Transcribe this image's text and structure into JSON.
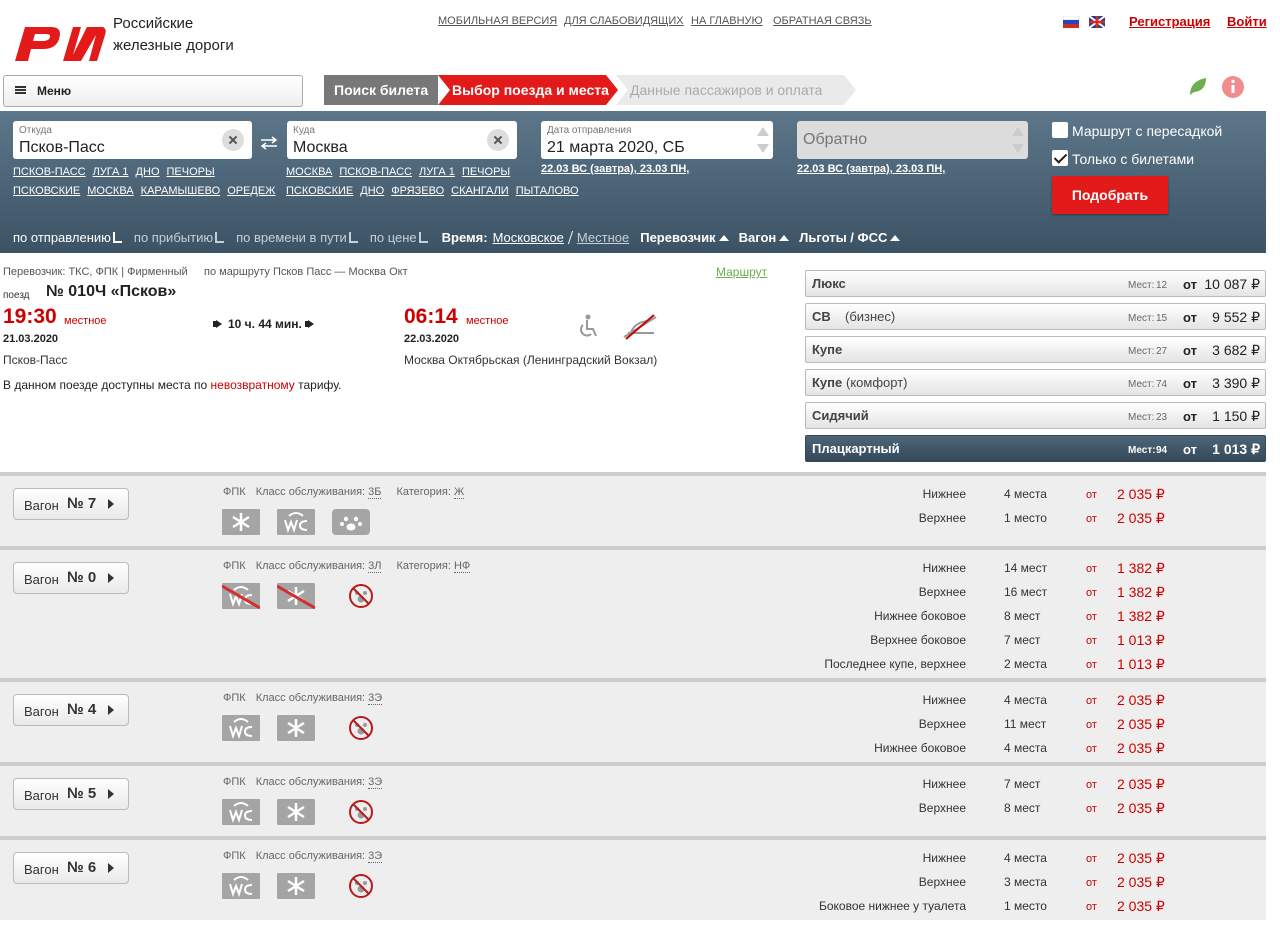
{
  "header": {
    "logo_line1": "Российские",
    "logo_line2": "железные дороги",
    "links": [
      "МОБИЛЬНАЯ ВЕРСИЯ",
      "ДЛЯ СЛАБОВИДЯЩИХ",
      "НА ГЛАВНУЮ",
      "ОБРАТНАЯ СВЯЗЬ"
    ],
    "register": "Регистрация",
    "login": "Войти"
  },
  "menu": "Меню",
  "steps": [
    "Поиск билета",
    "Выбор поезда и места",
    "Данные пассажиров и оплата"
  ],
  "search": {
    "from_label": "Откуда",
    "from_value": "Псков-Пасс",
    "from_suggest": [
      "ПСКОВ-ПАСС",
      "ЛУГА 1",
      "ДНО",
      "ПЕЧОРЫ ПСКОВСКИЕ",
      "МОСКВА",
      "КАРАМЫШЕВО",
      "ОРЕДЕЖ"
    ],
    "to_label": "Куда",
    "to_value": "Москва",
    "to_suggest": [
      "МОСКВА",
      "ПСКОВ-ПАСС",
      "ЛУГА 1",
      "ПЕЧОРЫ ПСКОВСКИЕ",
      "ДНО",
      "ФРЯЗЕВО",
      "СКАНГАЛИ",
      "ПЫТАЛОВО"
    ],
    "date_label": "Дата отправления",
    "date_value": "21 марта 2020, СБ",
    "date_suggest": "22.03 ВС (завтра), 23.03 ПН,",
    "return_placeholder": "Обратно",
    "return_suggest": "22.03 ВС (завтра), 23.03 ПН,",
    "transfer": "Маршрут с пересадкой",
    "only_tickets": "Только с билетами",
    "button": "Подобрать"
  },
  "sort": {
    "options": [
      "по отправлению",
      "по прибытию",
      "по времени в пути",
      "по цене"
    ],
    "time_label": "Время:",
    "time_options": [
      "Московское",
      "Местное"
    ],
    "filters": [
      "Перевозчик",
      "Вагон",
      "Льготы / ФСС"
    ]
  },
  "train": {
    "carrier": "Перевозчик: ТКС, ФПК | Фирменный",
    "route": "по маршруту Псков Пасс — Москва Окт",
    "route_link": "Маршрут",
    "label": "поезд",
    "number": "№ 010Ч «Псков»",
    "dep_time": "19:30",
    "local": "местное",
    "dep_date": "21.03.2020",
    "dep_station": "Псков-Пасс",
    "duration": "10 ч. 44 мин.",
    "arr_time": "06:14",
    "arr_date": "22.03.2020",
    "arr_station": "Москва Октябрьская (Ленинградский Вокзал)",
    "note": [
      "В данном поезде доступны места по ",
      "невозвратному",
      " тарифу."
    ]
  },
  "classes": {
    "seats_label": "Мест:",
    "from": "от",
    "items": [
      {
        "name": "Люкс",
        "seats": 12,
        "price": "10 087 ₽"
      },
      {
        "name": "СВ",
        "sub": "(бизнес)",
        "seats": 15,
        "price": "9 552 ₽"
      },
      {
        "name": "Купе",
        "seats": 27,
        "price": "3 682 ₽"
      },
      {
        "name": "Купе",
        "sub": "(комфорт)",
        "seats": 74,
        "price": "3 390 ₽"
      },
      {
        "name": "Сидячий",
        "seats": 23,
        "price": "1 150 ₽"
      },
      {
        "name": "Плацкартный",
        "seats": 94,
        "price": "1 013 ₽",
        "active": true
      }
    ]
  },
  "cars": {
    "car_label": "Вагон",
    "service_label": "Класс обслуживания:",
    "category_label": "Категория:",
    "from": "от",
    "items": [
      {
        "number": "№ 7",
        "carrier": "ФПК",
        "service": "3Б",
        "category": "Ж",
        "icons": [
          "snow",
          "wc",
          "pet"
        ],
        "seats": [
          {
            "type": "Нижнее",
            "count": "4 места",
            "price": "2 035 ₽"
          },
          {
            "type": "Верхнее",
            "count": "1 место",
            "price": "2 035 ₽"
          }
        ]
      },
      {
        "number": "№ 0",
        "carrier": "ФПК",
        "service": "3Л",
        "category": "НФ",
        "icons": [
          "no-wc",
          "no-snow",
          "no-pet"
        ],
        "seats": [
          {
            "type": "Нижнее",
            "count": "14 мест",
            "price": "1 382 ₽"
          },
          {
            "type": "Верхнее",
            "count": "16 мест",
            "price": "1 382 ₽"
          },
          {
            "type": "Нижнее боковое",
            "count": "8 мест",
            "price": "1 382 ₽"
          },
          {
            "type": "Верхнее боковое",
            "count": "7 мест",
            "price": "1 013 ₽"
          },
          {
            "type": "Последнее купе, верхнее",
            "count": "2 места",
            "price": "1 013 ₽"
          }
        ]
      },
      {
        "number": "№ 4",
        "carrier": "ФПК",
        "service": "3Э",
        "icons": [
          "wc",
          "snow",
          "no-pet"
        ],
        "seats": [
          {
            "type": "Нижнее",
            "count": "4 места",
            "price": "2 035 ₽"
          },
          {
            "type": "Верхнее",
            "count": "11 мест",
            "price": "2 035 ₽"
          },
          {
            "type": "Нижнее боковое",
            "count": "4 места",
            "price": "2 035 ₽"
          }
        ]
      },
      {
        "number": "№ 5",
        "carrier": "ФПК",
        "service": "3Э",
        "icons": [
          "wc",
          "snow",
          "no-pet"
        ],
        "seats": [
          {
            "type": "Нижнее",
            "count": "7 мест",
            "price": "2 035 ₽"
          },
          {
            "type": "Верхнее",
            "count": "8 мест",
            "price": "2 035 ₽"
          }
        ]
      },
      {
        "number": "№ 6",
        "carrier": "ФПК",
        "service": "3Э",
        "icons": [
          "wc",
          "snow",
          "no-pet"
        ],
        "seats": [
          {
            "type": "Нижнее",
            "count": "4 места",
            "price": "2 035 ₽"
          },
          {
            "type": "Верхнее",
            "count": "3 места",
            "price": "2 035 ₽"
          },
          {
            "type": "Боковое нижнее у туалета",
            "count": "1 место",
            "price": "2 035 ₽"
          }
        ]
      }
    ]
  }
}
